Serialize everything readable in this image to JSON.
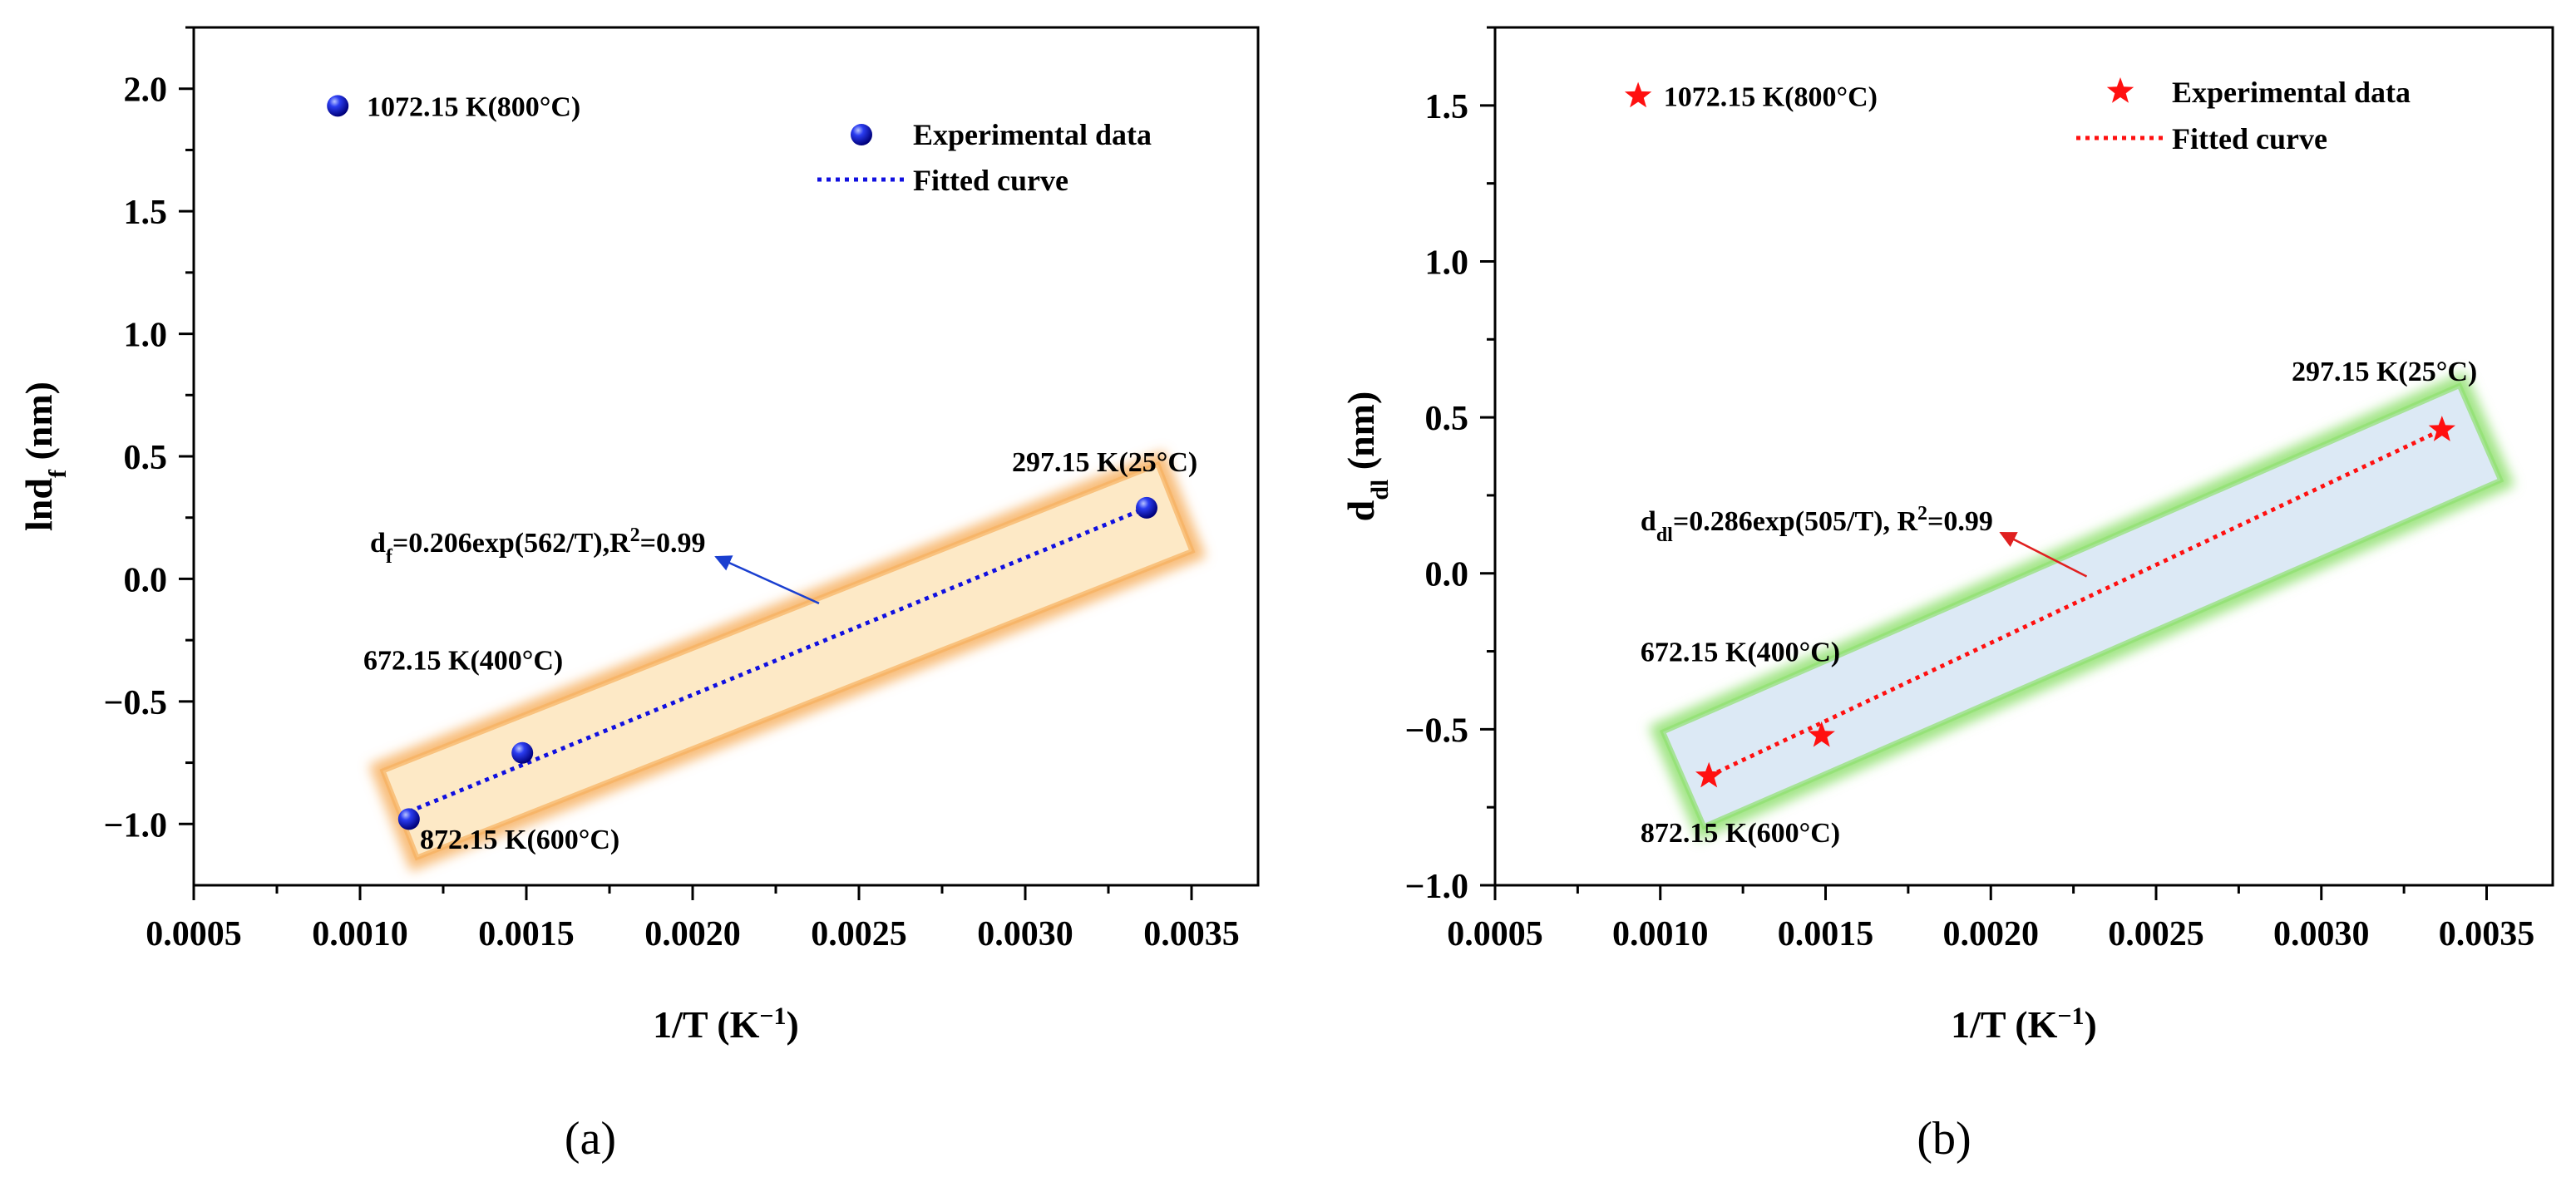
{
  "chart_data": [
    {
      "type": "scatter",
      "panel_label": "(a)",
      "xlabel": "1/T (K",
      "xlabel_sup": "−1",
      "xlabel_end": ")",
      "ylabel": "lnd",
      "ylabel_sub": "f",
      "ylabel_end": " (nm)",
      "xlim": [
        0.0005,
        0.0037
      ],
      "ylim": [
        -1.25,
        2.25
      ],
      "xticks": [
        0.0005,
        0.001,
        0.0015,
        0.002,
        0.0025,
        0.003,
        0.0035
      ],
      "xtick_labels": [
        "0.0005",
        "0.0010",
        "0.0015",
        "0.0020",
        "0.0025",
        "0.0030",
        "0.0035"
      ],
      "yticks": [
        -1.0,
        -0.5,
        0.0,
        0.5,
        1.0,
        1.5,
        2.0
      ],
      "ytick_labels": [
        "−1.0",
        "−0.5",
        "0.0",
        "0.5",
        "1.0",
        "1.5",
        "2.0"
      ],
      "marker": "sphere",
      "color": "#1010e0",
      "series": [
        {
          "name": "Experimental data",
          "x": [
            0.000933,
            0.001147,
            0.001488,
            0.003365
          ],
          "y": [
            1.93,
            -0.98,
            -0.71,
            0.29
          ]
        },
        {
          "name": "Fitted curve",
          "style": "dotted",
          "x": [
            0.001147,
            0.003365
          ],
          "y": [
            -0.95,
            0.29
          ]
        }
      ],
      "highlight": {
        "color": "#f7b060",
        "fill": "#fde9c6",
        "x": [
          0.00112,
          0.00345
        ],
        "y_center": [
          -0.96,
          0.29
        ]
      },
      "annotations": [
        {
          "text": "1072.15 K(800°C)",
          "x": 0.00102,
          "y": 1.93
        },
        {
          "text": "297.15 K(25°C)",
          "x": 0.00296,
          "y": 0.48
        },
        {
          "text": "672.15 K(400°C)",
          "x": 0.00101,
          "y": -0.33
        },
        {
          "text": "872.15 K(600°C)",
          "x": 0.00118,
          "y": -1.06
        }
      ],
      "equation": {
        "pre": "d",
        "sub": "f",
        "mid": "=0.206exp(562/T),R",
        "sup": "2",
        "post": "=0.99",
        "x": 0.00103,
        "y": 0.15
      },
      "arrow": {
        "color": "#1a3fd0",
        "from": [
          0.00238,
          -0.1
        ],
        "to": [
          0.00207,
          0.09
        ]
      }
    },
    {
      "type": "scatter",
      "panel_label": "(b)",
      "xlabel": "1/T (K",
      "xlabel_sup": "−1",
      "xlabel_end": ")",
      "ylabel": "d",
      "ylabel_sub": "dl",
      "ylabel_end": " (nm)",
      "xlim": [
        0.0005,
        0.0037
      ],
      "ylim": [
        -1.0,
        1.75
      ],
      "xticks": [
        0.0005,
        0.001,
        0.0015,
        0.002,
        0.0025,
        0.003,
        0.0035
      ],
      "xtick_labels": [
        "0.0005",
        "0.0010",
        "0.0015",
        "0.0020",
        "0.0025",
        "0.0030",
        "0.0035"
      ],
      "yticks": [
        -1.0,
        -0.5,
        0.0,
        0.5,
        1.0,
        1.5
      ],
      "ytick_labels": [
        "−1.0",
        "−0.5",
        "0.0",
        "0.5",
        "1.0",
        "1.5"
      ],
      "marker": "star",
      "color": "#ff1010",
      "series": [
        {
          "name": "Experimental data",
          "x": [
            0.000933,
            0.001147,
            0.001488,
            0.003365
          ],
          "y": [
            1.53,
            -0.65,
            -0.52,
            0.46
          ]
        },
        {
          "name": "Fitted curve",
          "style": "dotted",
          "x": [
            0.001147,
            0.003365
          ],
          "y": [
            -0.65,
            0.46
          ]
        }
      ],
      "highlight": {
        "color": "#90e070",
        "fill": "#dce9f5",
        "x": [
          0.00107,
          0.00348
        ],
        "y_center": [
          -0.66,
          0.45
        ]
      },
      "annotations": [
        {
          "text": "1072.15 K(800°C)",
          "x": 0.00101,
          "y": 1.53
        },
        {
          "text": "297.15 K(25°C)",
          "x": 0.00291,
          "y": 0.65
        },
        {
          "text": "672.15 K(400°C)",
          "x": 0.00094,
          "y": -0.25
        },
        {
          "text": "872.15 K(600°C)",
          "x": 0.00094,
          "y": -0.83
        }
      ],
      "equation": {
        "pre": "d",
        "sub": "dl",
        "mid": "=0.286exp(505/T), R",
        "sup": "2",
        "post": "=0.99",
        "x": 0.00094,
        "y": 0.17
      },
      "arrow": {
        "color": "#e02020",
        "from": [
          0.00229,
          -0.01
        ],
        "to": [
          0.00203,
          0.13
        ]
      }
    }
  ]
}
